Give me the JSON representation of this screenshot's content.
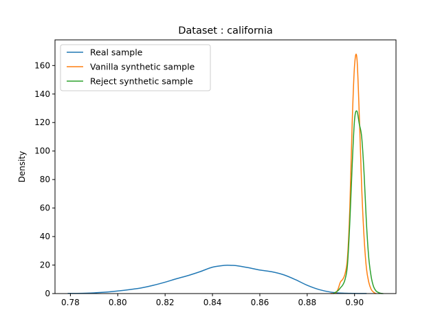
{
  "chart_data": {
    "type": "line",
    "title": "Dataset : california",
    "xlabel": "",
    "ylabel": "Density",
    "xlim": [
      0.7735,
      0.9175
    ],
    "ylim": [
      0,
      178
    ],
    "x_ticks": [
      0.78,
      0.8,
      0.82,
      0.84,
      0.86,
      0.88,
      0.9
    ],
    "x_tick_labels": [
      "0.78",
      "0.80",
      "0.82",
      "0.84",
      "0.86",
      "0.88",
      "0.90"
    ],
    "y_ticks": [
      0,
      20,
      40,
      60,
      80,
      100,
      120,
      140,
      160
    ],
    "y_tick_labels": [
      "0",
      "20",
      "40",
      "60",
      "80",
      "100",
      "120",
      "140",
      "160"
    ],
    "grid": false,
    "legend_position": "top-left",
    "series": [
      {
        "name": "Real sample",
        "color": "#1f77b4",
        "x": [
          0.779,
          0.785,
          0.79,
          0.795,
          0.8,
          0.805,
          0.81,
          0.815,
          0.82,
          0.825,
          0.83,
          0.835,
          0.84,
          0.845,
          0.848,
          0.85,
          0.855,
          0.86,
          0.865,
          0.87,
          0.875,
          0.88,
          0.885,
          0.89,
          0.895,
          0.9,
          0.905
        ],
        "y": [
          0.1,
          0.2,
          0.5,
          1.0,
          1.8,
          2.8,
          4.0,
          5.8,
          8.0,
          10.5,
          12.8,
          15.5,
          18.5,
          19.8,
          19.8,
          19.6,
          18.2,
          16.5,
          15.3,
          13.2,
          9.8,
          5.8,
          2.8,
          1.0,
          0.3,
          0.1,
          0.05
        ]
      },
      {
        "name": "Vanilla synthetic sample",
        "color": "#ff7f0e",
        "x": [
          0.89,
          0.892,
          0.893,
          0.894,
          0.895,
          0.896,
          0.897,
          0.898,
          0.899,
          0.9,
          0.901,
          0.902,
          0.903,
          0.904,
          0.905,
          0.906,
          0.907,
          0.908,
          0.909
        ],
        "y": [
          0,
          0.5,
          3,
          8,
          10,
          14,
          25,
          60,
          120,
          160,
          165,
          125,
          75,
          40,
          18,
          8,
          3,
          1,
          0
        ]
      },
      {
        "name": "Reject synthetic sample",
        "color": "#2ca02c",
        "x": [
          0.891,
          0.893,
          0.894,
          0.895,
          0.896,
          0.897,
          0.898,
          0.899,
          0.9,
          0.901,
          0.902,
          0.903,
          0.904,
          0.905,
          0.906,
          0.907,
          0.908,
          0.909,
          0.91,
          0.911,
          0.912
        ],
        "y": [
          0,
          2,
          4,
          6,
          10,
          20,
          50,
          90,
          122,
          128,
          119,
          110,
          85,
          50,
          25,
          12,
          5,
          2,
          0.8,
          0.2,
          0
        ]
      }
    ]
  }
}
